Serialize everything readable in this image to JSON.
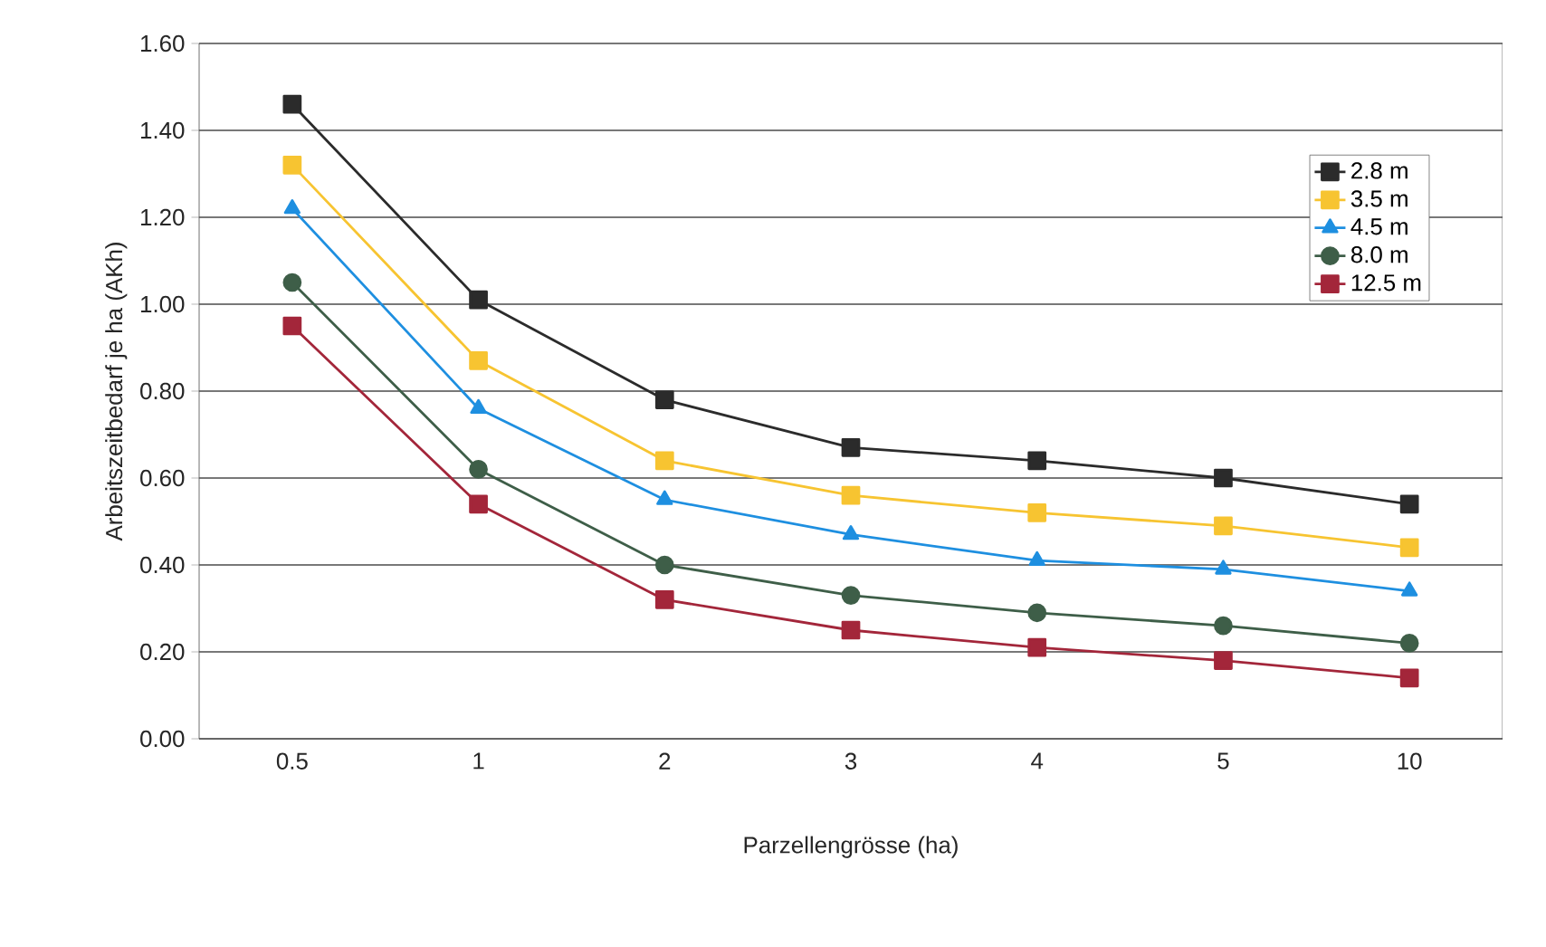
{
  "chart_data": {
    "type": "line",
    "xlabel": "Parzellengrösse (ha)",
    "ylabel": "Arbeitszeitbedarf je ha (AKh)",
    "categories": [
      "0.5",
      "1",
      "2",
      "3",
      "4",
      "5",
      "10"
    ],
    "series": [
      {
        "name": "2.8 m",
        "color": "#2b2b2b",
        "marker": "square",
        "values": [
          1.46,
          1.01,
          0.78,
          0.67,
          0.64,
          0.6,
          0.54
        ]
      },
      {
        "name": "3.5 m",
        "color": "#f7c431",
        "marker": "square",
        "values": [
          1.32,
          0.87,
          0.64,
          0.56,
          0.52,
          0.49,
          0.44
        ]
      },
      {
        "name": "4.5 m",
        "color": "#1e8fe0",
        "marker": "triangle",
        "values": [
          1.22,
          0.76,
          0.55,
          0.47,
          0.41,
          0.39,
          0.34
        ]
      },
      {
        "name": "8.0 m",
        "color": "#3e5e48",
        "marker": "circle",
        "values": [
          1.05,
          0.62,
          0.4,
          0.33,
          0.29,
          0.26,
          0.22
        ]
      },
      {
        "name": "12.5 m",
        "color": "#a3263a",
        "marker": "square",
        "values": [
          0.95,
          0.54,
          0.32,
          0.25,
          0.21,
          0.18,
          0.14
        ]
      }
    ],
    "ylim": [
      0,
      1.6
    ],
    "yticks": [
      {
        "value": 0,
        "label": "0.00"
      },
      {
        "value": 0.2,
        "label": "0.20"
      },
      {
        "value": 0.4,
        "label": "0.40"
      },
      {
        "value": 0.6,
        "label": "0.60"
      },
      {
        "value": 0.8,
        "label": "0.80"
      },
      {
        "value": 1.0,
        "label": "1.00"
      },
      {
        "value": 1.2,
        "label": "1.20"
      },
      {
        "value": 1.4,
        "label": "1.40"
      },
      {
        "value": 1.6,
        "label": "1.60"
      }
    ],
    "grid": "y",
    "legend": "right",
    "line_style": "solid"
  }
}
